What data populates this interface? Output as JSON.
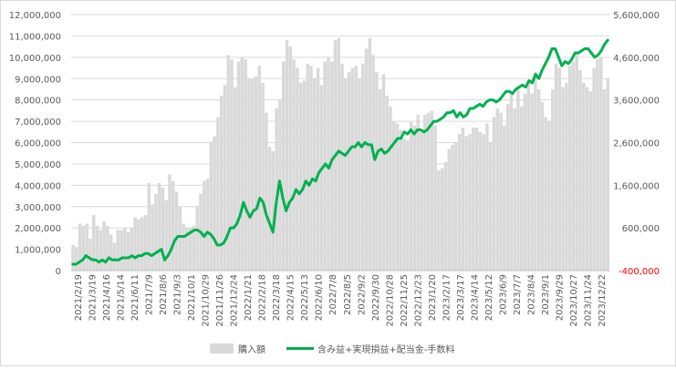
{
  "chart_data": {
    "type": "bar+line",
    "y_left": {
      "min": 0,
      "max": 12000000,
      "step": 1000000,
      "tick_labels": [
        "0",
        "1,000,000",
        "2,000,000",
        "3,000,000",
        "4,000,000",
        "5,000,000",
        "6,000,000",
        "7,000,000",
        "8,000,000",
        "9,000,000",
        "10,000,000",
        "11,000,000",
        "12,000,000"
      ]
    },
    "y_right": {
      "min": -400000,
      "max": 5600000,
      "tick_labels": [
        "-400,000",
        "600,000",
        "1,600,000",
        "2,600,000",
        "3,600,000",
        "4,600,000",
        "5,600,000"
      ],
      "negative_color": "#ff0000"
    },
    "x_tick_labels": [
      "2021/2/19",
      "2021/3/19",
      "2021/4/16",
      "2021/5/14",
      "2021/6/11",
      "2021/7/9",
      "2021/8/6",
      "2021/9/3",
      "2021/10/1",
      "2021/10/29",
      "2021/11/26",
      "2021/12/24",
      "2022/1/21",
      "2022/2/18",
      "2022/3/18",
      "2022/4/15",
      "2022/5/13",
      "2022/6/10",
      "2022/7/8",
      "2022/8/5",
      "2022/9/2",
      "2022/9/30",
      "2022/10/28",
      "2022/11/25",
      "2022/12/23",
      "2023/1/20",
      "2023/2/17",
      "2023/3/17",
      "2023/4/14",
      "2023/5/12",
      "2023/6/9",
      "2023/7/7",
      "2023/8/4",
      "2023/9/1",
      "2023/9/29",
      "2023/10/27",
      "2023/11/24",
      "2023/12/22"
    ],
    "series": [
      {
        "name": "購入額",
        "type": "bar",
        "axis": "left",
        "color": "#d9d9d9",
        "values": [
          1200000,
          1100000,
          2200000,
          2100000,
          2200000,
          1500000,
          2600000,
          2100000,
          1900000,
          2300000,
          2100000,
          1700000,
          1300000,
          1900000,
          1900000,
          2000000,
          1800000,
          2000000,
          2500000,
          2400000,
          2500000,
          2600000,
          4100000,
          3100000,
          3600000,
          4100000,
          3900000,
          3300000,
          4500000,
          4200000,
          3700000,
          3000000,
          2200000,
          2000000,
          2000000,
          2100000,
          3000000,
          3600000,
          4200000,
          4300000,
          6000000,
          6300000,
          7200000,
          8200000,
          8700000,
          10100000,
          9900000,
          8600000,
          9800000,
          10000000,
          9900000,
          9000000,
          9000000,
          9100000,
          9600000,
          8800000,
          7400000,
          5800000,
          5600000,
          7600000,
          8000000,
          9800000,
          10800000,
          10500000,
          9900000,
          9500000,
          8800000,
          8900000,
          9700000,
          9600000,
          9000000,
          9500000,
          8700000,
          9800000,
          10000000,
          9800000,
          10800000,
          10900000,
          9700000,
          9000000,
          9300000,
          9500000,
          9600000,
          9000000,
          9700000,
          10400000,
          10900000,
          10100000,
          9300000,
          8500000,
          9200000,
          8200000,
          7700000,
          7000000,
          6900000,
          6600000,
          6200000,
          6100000,
          7000000,
          6800000,
          7300000,
          6500000,
          7300000,
          7400000,
          7500000,
          6800000,
          4700000,
          4800000,
          5100000,
          5700000,
          5900000,
          6000000,
          6400000,
          6700000,
          6300000,
          6400000,
          6700000,
          6700000,
          6500000,
          6400000,
          6900000,
          6000000,
          7200000,
          7600000,
          7400000,
          6800000,
          7800000,
          8300000,
          7600000,
          8500000,
          7700000,
          8300000,
          8900000,
          8300000,
          9300000,
          8500000,
          7900000,
          7200000,
          7000000,
          8500000,
          9700000,
          9500000,
          8600000,
          8800000,
          9600000,
          9800000,
          10300000,
          9400000,
          8800000,
          8600000,
          8400000,
          9500000,
          9900000,
          10000000,
          8500000,
          9000000
        ]
      },
      {
        "name": "含み益+実現損益+配当金-手数料",
        "type": "line",
        "axis": "right",
        "color": "#00b050",
        "values": [
          -250000,
          -250000,
          -200000,
          -150000,
          -50000,
          -100000,
          -150000,
          -150000,
          -200000,
          -150000,
          -200000,
          -100000,
          -150000,
          -150000,
          -150000,
          -100000,
          -100000,
          -100000,
          -50000,
          -100000,
          -50000,
          -50000,
          0,
          0,
          -50000,
          0,
          50000,
          100000,
          -150000,
          -50000,
          100000,
          300000,
          400000,
          400000,
          400000,
          450000,
          500000,
          550000,
          550000,
          500000,
          400000,
          500000,
          450000,
          350000,
          200000,
          200000,
          250000,
          400000,
          600000,
          600000,
          700000,
          900000,
          1200000,
          1000000,
          850000,
          1000000,
          1050000,
          1300000,
          1200000,
          900000,
          700000,
          500000,
          1200000,
          1700000,
          1300000,
          1000000,
          1200000,
          1300000,
          1500000,
          1400000,
          1500000,
          1700000,
          1600000,
          1750000,
          1700000,
          1900000,
          2000000,
          2100000,
          2000000,
          2200000,
          2300000,
          2400000,
          2350000,
          2300000,
          2400000,
          2500000,
          2500000,
          2600000,
          2500000,
          2600000,
          2550000,
          2550000,
          2200000,
          2400000,
          2450000,
          2350000,
          2400000,
          2500000,
          2600000,
          2700000,
          2700000,
          2850000,
          2800000,
          2900000,
          2800000,
          2900000,
          2900000,
          2850000,
          2900000,
          3000000,
          3100000,
          3100000,
          3150000,
          3200000,
          3300000,
          3300000,
          3350000,
          3200000,
          3300000,
          3200000,
          3250000,
          3400000,
          3400000,
          3450000,
          3500000,
          3450000,
          3550000,
          3600000,
          3600000,
          3550000,
          3600000,
          3700000,
          3800000,
          3800000,
          3750000,
          3850000,
          3900000,
          3950000,
          3900000,
          4050000,
          4000000,
          4200000,
          4100000,
          4300000,
          4450000,
          4600000,
          4800000,
          4800000,
          4600000,
          4400000,
          4500000,
          4450000,
          4550000,
          4700000,
          4700000,
          4750000,
          4800000,
          4800000,
          4700000,
          4600000,
          4650000,
          4750000,
          4900000,
          5000000
        ]
      }
    ],
    "legend_position": "bottom",
    "grid": "horizontal"
  }
}
